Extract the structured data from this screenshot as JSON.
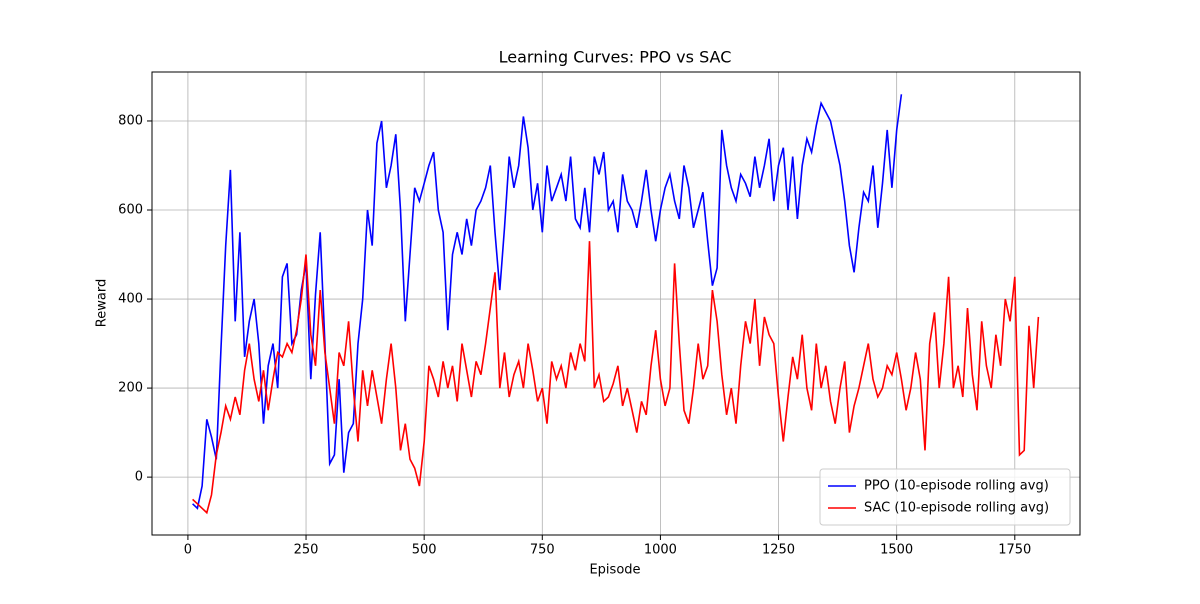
{
  "chart_data": {
    "type": "line",
    "title": "Learning Curves: PPO vs SAC",
    "xlabel": "Episode",
    "ylabel": "Reward",
    "xlim": [
      -76,
      1888
    ],
    "ylim": [
      -130,
      910
    ],
    "xticks": [
      0,
      250,
      500,
      750,
      1000,
      1250,
      1500,
      1750
    ],
    "yticks": [
      0,
      200,
      400,
      600,
      800
    ],
    "grid": true,
    "legend": "lower right",
    "series": [
      {
        "name": "PPO (10-episode rolling avg)",
        "color": "#0000ff",
        "x": [
          10,
          20,
          30,
          40,
          50,
          60,
          70,
          80,
          90,
          100,
          110,
          120,
          130,
          140,
          150,
          160,
          170,
          180,
          190,
          200,
          210,
          220,
          230,
          240,
          250,
          260,
          270,
          280,
          290,
          300,
          310,
          320,
          330,
          340,
          350,
          360,
          370,
          380,
          390,
          400,
          410,
          420,
          430,
          440,
          450,
          460,
          470,
          480,
          490,
          500,
          510,
          520,
          530,
          540,
          550,
          560,
          570,
          580,
          590,
          600,
          610,
          620,
          630,
          640,
          650,
          660,
          670,
          680,
          690,
          700,
          710,
          720,
          730,
          740,
          750,
          760,
          770,
          780,
          790,
          800,
          810,
          820,
          830,
          840,
          850,
          860,
          870,
          880,
          890,
          900,
          910,
          920,
          930,
          940,
          950,
          960,
          970,
          980,
          990,
          1000,
          1010,
          1020,
          1030,
          1040,
          1050,
          1060,
          1070,
          1080,
          1090,
          1100,
          1110,
          1120,
          1130,
          1140,
          1150,
          1160,
          1170,
          1180,
          1190,
          1200,
          1210,
          1220,
          1230,
          1240,
          1250,
          1260,
          1270,
          1280,
          1290,
          1300,
          1310,
          1320,
          1330,
          1340,
          1350,
          1360,
          1370,
          1380,
          1390,
          1400,
          1410,
          1420,
          1430,
          1440,
          1450,
          1460,
          1470,
          1480,
          1490,
          1500,
          1510
        ],
        "values": [
          -60,
          -70,
          -20,
          130,
          90,
          40,
          290,
          520,
          690,
          350,
          550,
          270,
          350,
          400,
          300,
          120,
          250,
          300,
          200,
          450,
          480,
          300,
          320,
          420,
          480,
          220,
          410,
          550,
          300,
          30,
          50,
          220,
          10,
          100,
          120,
          300,
          400,
          600,
          520,
          750,
          800,
          650,
          700,
          770,
          600,
          350,
          500,
          650,
          620,
          660,
          700,
          730,
          600,
          550,
          330,
          500,
          550,
          500,
          580,
          520,
          600,
          620,
          650,
          700,
          550,
          420,
          560,
          720,
          650,
          700,
          810,
          740,
          600,
          660,
          550,
          700,
          620,
          650,
          680,
          620,
          720,
          580,
          560,
          650,
          550,
          720,
          680,
          730,
          600,
          620,
          550,
          680,
          620,
          600,
          560,
          620,
          690,
          600,
          530,
          600,
          650,
          680,
          620,
          580,
          700,
          650,
          560,
          600,
          640,
          530,
          430,
          470,
          780,
          700,
          650,
          620,
          680,
          660,
          630,
          720,
          650,
          700,
          760,
          620,
          700,
          740,
          600,
          720,
          580,
          700,
          760,
          730,
          790,
          840,
          820,
          800,
          750,
          700,
          620,
          520,
          460,
          560,
          640,
          620,
          700,
          560,
          660,
          780,
          650,
          780,
          860
        ]
      },
      {
        "name": "SAC (10-episode rolling avg)",
        "color": "#ff0000",
        "x": [
          10,
          20,
          30,
          40,
          50,
          60,
          70,
          80,
          90,
          100,
          110,
          120,
          130,
          140,
          150,
          160,
          170,
          180,
          190,
          200,
          210,
          220,
          230,
          240,
          250,
          260,
          270,
          280,
          290,
          300,
          310,
          320,
          330,
          340,
          350,
          360,
          370,
          380,
          390,
          400,
          410,
          420,
          430,
          440,
          450,
          460,
          470,
          480,
          490,
          500,
          510,
          520,
          530,
          540,
          550,
          560,
          570,
          580,
          590,
          600,
          610,
          620,
          630,
          640,
          650,
          660,
          670,
          680,
          690,
          700,
          710,
          720,
          730,
          740,
          750,
          760,
          770,
          780,
          790,
          800,
          810,
          820,
          830,
          840,
          850,
          860,
          870,
          880,
          890,
          900,
          910,
          920,
          930,
          940,
          950,
          960,
          970,
          980,
          990,
          1000,
          1010,
          1020,
          1030,
          1040,
          1050,
          1060,
          1070,
          1080,
          1090,
          1100,
          1110,
          1120,
          1130,
          1140,
          1150,
          1160,
          1170,
          1180,
          1190,
          1200,
          1210,
          1220,
          1230,
          1240,
          1250,
          1260,
          1270,
          1280,
          1290,
          1300,
          1310,
          1320,
          1330,
          1340,
          1350,
          1360,
          1370,
          1380,
          1390,
          1400,
          1410,
          1420,
          1430,
          1440,
          1450,
          1460,
          1470,
          1480,
          1490,
          1500,
          1510,
          1520,
          1530,
          1540,
          1550,
          1560,
          1570,
          1580,
          1590,
          1600,
          1610,
          1620,
          1630,
          1640,
          1650,
          1660,
          1670,
          1680,
          1690,
          1700,
          1710,
          1720,
          1730,
          1740,
          1750,
          1760,
          1770,
          1780,
          1790,
          1800
        ],
        "values": [
          -50,
          -60,
          -70,
          -80,
          -40,
          50,
          100,
          160,
          130,
          180,
          140,
          240,
          300,
          220,
          170,
          240,
          150,
          220,
          280,
          270,
          300,
          280,
          330,
          400,
          500,
          320,
          250,
          420,
          280,
          200,
          120,
          280,
          250,
          350,
          200,
          80,
          240,
          160,
          240,
          180,
          120,
          220,
          300,
          200,
          60,
          120,
          40,
          20,
          -20,
          80,
          250,
          220,
          180,
          260,
          200,
          250,
          170,
          300,
          240,
          180,
          260,
          230,
          300,
          380,
          460,
          200,
          280,
          180,
          230,
          260,
          200,
          300,
          240,
          170,
          200,
          120,
          260,
          220,
          250,
          200,
          280,
          240,
          300,
          260,
          530,
          200,
          230,
          170,
          180,
          210,
          250,
          160,
          200,
          150,
          100,
          170,
          140,
          250,
          330,
          220,
          160,
          200,
          480,
          300,
          150,
          120,
          200,
          300,
          220,
          250,
          420,
          350,
          230,
          140,
          200,
          120,
          250,
          350,
          300,
          400,
          250,
          360,
          320,
          300,
          180,
          80,
          180,
          270,
          220,
          320,
          200,
          150,
          300,
          200,
          250,
          170,
          120,
          200,
          260,
          100,
          160,
          200,
          250,
          300,
          220,
          180,
          200,
          250,
          230,
          280,
          220,
          150,
          200,
          280,
          220,
          60,
          300,
          370,
          200,
          300,
          450,
          200,
          250,
          180,
          380,
          230,
          150,
          350,
          250,
          200,
          320,
          250,
          400,
          350,
          450,
          50,
          60,
          340,
          200,
          360
        ]
      }
    ]
  }
}
